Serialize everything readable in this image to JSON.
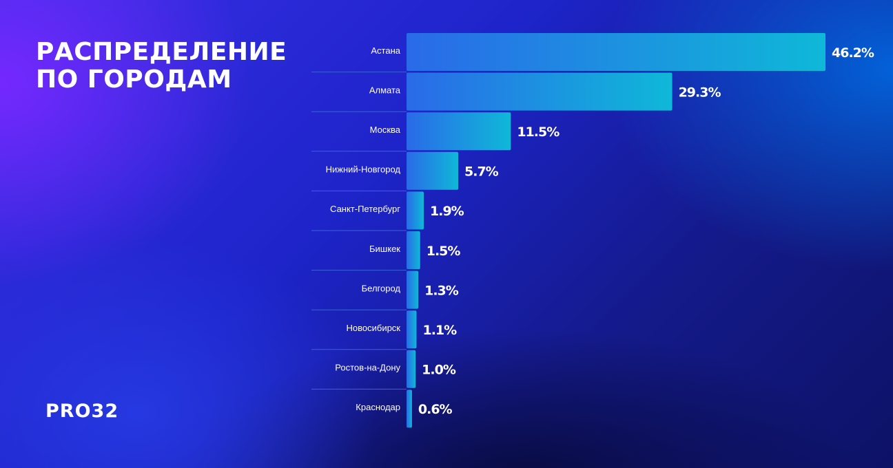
{
  "title": {
    "line1": "РАСПРЕДЕЛЕНИЕ",
    "line2": "ПО ГОРОДАМ"
  },
  "brand": {
    "logo_text": "PRO32"
  },
  "colors": {
    "bar_start": "#2a6ae8",
    "bar_end": "#0fb8d8",
    "divider": "#3a63d8",
    "text": "#ffffff"
  },
  "chart_data": {
    "type": "bar",
    "orientation": "horizontal",
    "title": "РАСПРЕДЕЛЕНИЕ ПО ГОРОДАМ",
    "categories": [
      "Астана",
      "Алмата",
      "Москва",
      "Нижний-Новгород",
      "Санкт-Петербург",
      "Бишкек",
      "Белгород",
      "Новосибирск",
      "Ростов-на-Дону",
      "Краснодар"
    ],
    "values": [
      46.2,
      29.3,
      11.5,
      5.7,
      1.9,
      1.5,
      1.3,
      1.1,
      1.0,
      0.6
    ],
    "value_labels": [
      "46.2%",
      "29.3%",
      "11.5%",
      "5.7%",
      "1.9%",
      "1.5%",
      "1.3%",
      "1.1%",
      "1.0%",
      "0.6%"
    ],
    "xlim": [
      0,
      46.2
    ],
    "grid": false,
    "legend": "none"
  }
}
